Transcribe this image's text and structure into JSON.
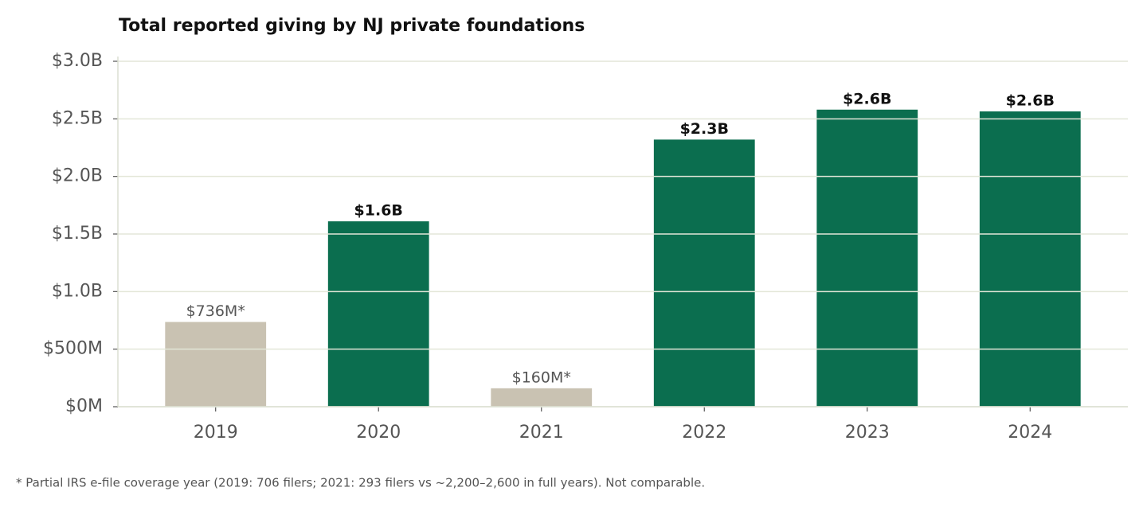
{
  "chart_data": {
    "type": "bar",
    "title": "Total reported giving by NJ private foundations",
    "categories": [
      "2019",
      "2020",
      "2021",
      "2022",
      "2023",
      "2024"
    ],
    "values": [
      736,
      1610,
      160,
      2320,
      2580,
      2565
    ],
    "value_labels": [
      "$736M*",
      "$1.6B",
      "$160M*",
      "$2.3B",
      "$2.6B",
      "$2.6B"
    ],
    "color": "#0b6e4f",
    "colors": [
      "#c9c2b2",
      "#0b6e4f",
      "#c9c2b2",
      "#0b6e4f",
      "#0b6e4f",
      "#0b6e4f"
    ],
    "ylim": [
      0,
      3000
    ],
    "yticks": [
      {
        "value": 0,
        "label": "$0M"
      },
      {
        "value": 500,
        "label": "$500M"
      },
      {
        "value": 1000,
        "label": "$1.0B"
      },
      {
        "value": 1500,
        "label": "$1.5B"
      },
      {
        "value": 2000,
        "label": "$2.0B"
      },
      {
        "value": 2500,
        "label": "$2.5B"
      },
      {
        "value": 3000,
        "label": "$3.0B"
      }
    ],
    "grid": true,
    "note": "* Partial IRS e-file coverage year (2019: 706 filers; 2021: 293 filers vs ~2,200–2,600 in full years). Not comparable."
  }
}
